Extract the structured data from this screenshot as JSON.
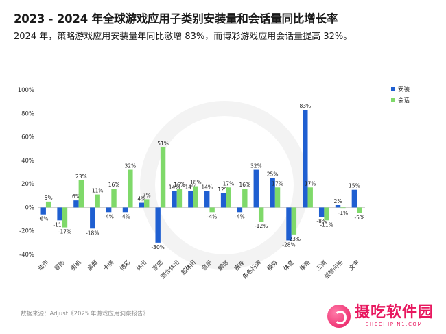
{
  "header": {
    "title": "2023 - 2024 年全球游戏应用子类别安装量和会话量同比增长率",
    "subtitle": "2024 年，策略游戏应用安装量年同比激增 83%，而博彩游戏应用会话量提高 32%。"
  },
  "footer": {
    "source": "数据来源：Adjust《2025 年游戏应用洞察报告》",
    "logo_cn": "摄吃软件园",
    "logo_en": "SHECHIPIN1.COM"
  },
  "chart_data": {
    "type": "bar",
    "title": "",
    "xlabel": "",
    "ylabel": "",
    "ylim": [
      -40,
      100
    ],
    "yticks": [
      "-40%",
      "-20%",
      "0%",
      "20%",
      "40%",
      "60%",
      "80%",
      "100%"
    ],
    "grid": false,
    "legend_position": "top-right",
    "categories": [
      "动作",
      "冒险",
      "街机",
      "桌面",
      "卡牌",
      "博彩",
      "休闲",
      "家庭",
      "混合休闲",
      "超休闲",
      "音乐",
      "解谜",
      "赛车",
      "角色扮演",
      "模拟",
      "体育",
      "策略",
      "三消",
      "益智问答",
      "文字"
    ],
    "series": [
      {
        "name": "安装",
        "color": "#1f5fd1",
        "values": [
          -6,
          -11,
          6,
          -18,
          -4,
          -4,
          4,
          -30,
          14,
          14,
          14,
          12,
          -4,
          32,
          25,
          -28,
          83,
          -8,
          2,
          15
        ],
        "labels": [
          "-6%",
          "-11%",
          "6%",
          "-18%",
          "-4%",
          "-4%",
          "4%",
          "-30%",
          "14%",
          "14%",
          "14%",
          "12%",
          "-4%",
          "32%",
          "25%",
          "-28%",
          "83%",
          "-8%",
          "2%",
          "15%"
        ]
      },
      {
        "name": "会话",
        "color": "#7fd96a",
        "values": [
          5,
          -17,
          23,
          11,
          16,
          32,
          7,
          51,
          16,
          18,
          -4,
          17,
          16,
          -12,
          17,
          -23,
          17,
          -11,
          -1,
          -5
        ],
        "labels": [
          "5%",
          "-17%",
          "23%",
          "11%",
          "16%",
          "32%",
          "7%",
          "51%",
          "16%",
          "18%",
          "-4%",
          "17%",
          "16%",
          "-12%",
          "17%",
          "-23%",
          "17%",
          "-11%",
          "-1%",
          "-5%"
        ]
      }
    ]
  }
}
